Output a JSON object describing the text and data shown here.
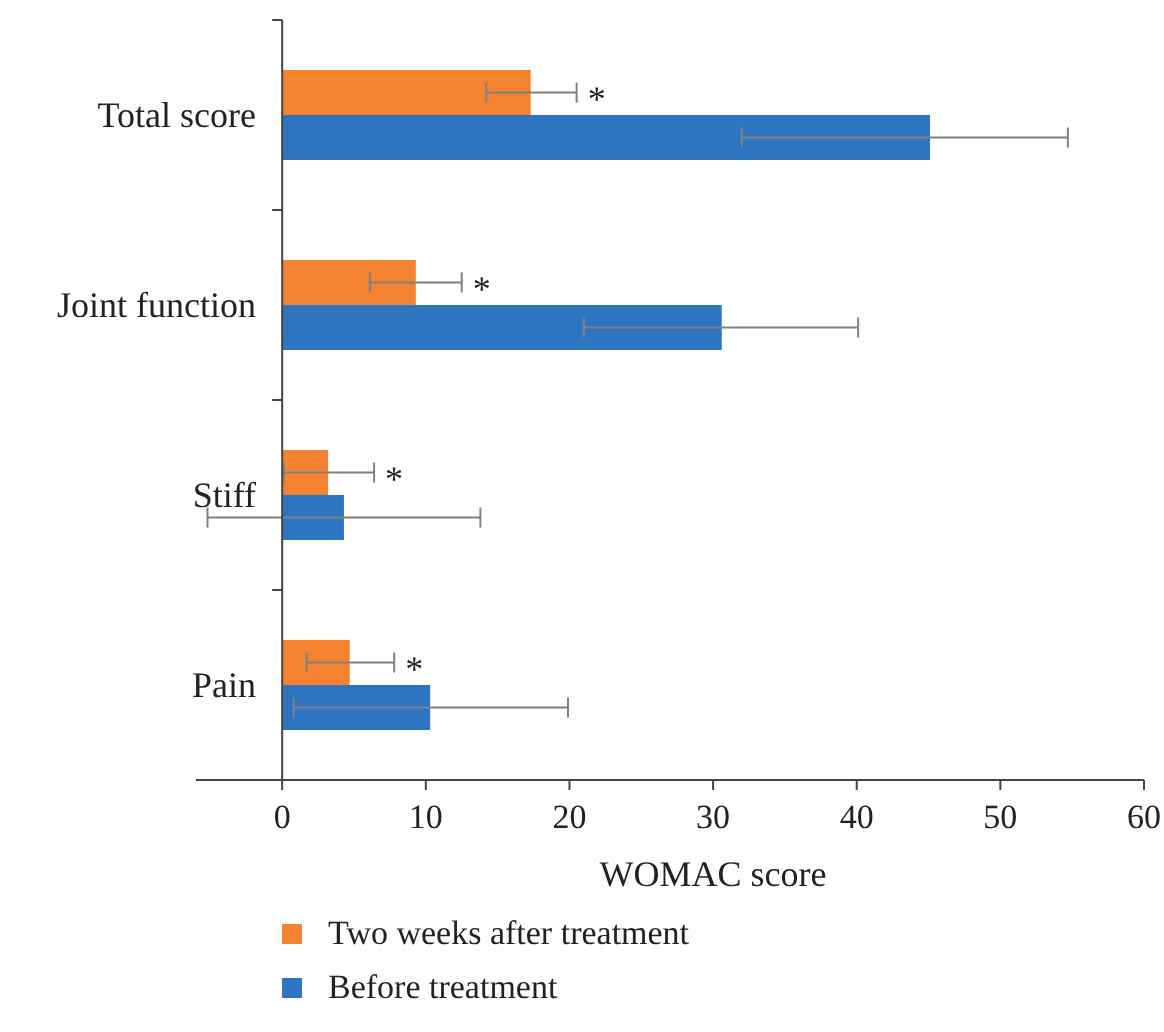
{
  "chart_data": {
    "type": "bar",
    "orientation": "horizontal",
    "xlabel": "WOMAC score",
    "categories": [
      "Total score",
      "Joint function",
      "Stiff",
      "Pain"
    ],
    "series": [
      {
        "name": "Two weeks after treatment",
        "color": "#f4822f",
        "values": [
          17.3,
          9.3,
          3.2,
          4.7
        ],
        "errors": [
          [
            14.2,
            20.5
          ],
          [
            6.1,
            12.5
          ],
          [
            0.1,
            6.4
          ],
          [
            1.7,
            7.8
          ]
        ]
      },
      {
        "name": "Before treatment",
        "color": "#2e75c1",
        "values": [
          45.1,
          30.6,
          4.3,
          10.3
        ],
        "errors": [
          [
            32,
            54.7
          ],
          [
            21,
            40.1
          ],
          [
            -5.2,
            13.8
          ],
          [
            0.8,
            19.9
          ]
        ]
      }
    ],
    "xlim": [
      -6,
      60
    ],
    "xticks": [
      0,
      10,
      20,
      30,
      40,
      50,
      60
    ],
    "grid": false,
    "legend": "bottom",
    "annotations": [
      "*",
      "*",
      "*",
      "*"
    ]
  }
}
